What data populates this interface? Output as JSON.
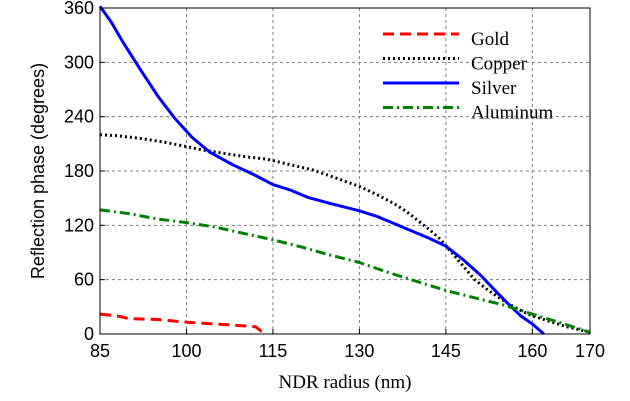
{
  "chart_data": {
    "type": "line",
    "xlabel": "NDR radius (nm)",
    "ylabel": "Reflection phase (degrees)",
    "xlim": [
      85,
      170
    ],
    "ylim": [
      0,
      360
    ],
    "xticks": [
      85,
      100,
      115,
      130,
      145,
      160,
      170
    ],
    "yticks": [
      0,
      60,
      120,
      180,
      240,
      300,
      360
    ],
    "grid": true,
    "legend_position": "top-right",
    "series": [
      {
        "name": "Gold",
        "color": "#ff0000",
        "style": "dashed",
        "points": [
          [
            85,
            22
          ],
          [
            88,
            20
          ],
          [
            90,
            17
          ],
          [
            95,
            16
          ],
          [
            100,
            13
          ],
          [
            105,
            11
          ],
          [
            110,
            9
          ],
          [
            112,
            8
          ],
          [
            113,
            3
          ],
          [
            114,
            0
          ]
        ]
      },
      {
        "name": "Copper",
        "color": "#000000",
        "style": "dotted",
        "points": [
          [
            85,
            220
          ],
          [
            88,
            219
          ],
          [
            92,
            216
          ],
          [
            96,
            212
          ],
          [
            100,
            207
          ],
          [
            103,
            203
          ],
          [
            106,
            200
          ],
          [
            110,
            196
          ],
          [
            114,
            193
          ],
          [
            118,
            187
          ],
          [
            122,
            181
          ],
          [
            126,
            172
          ],
          [
            130,
            163
          ],
          [
            133,
            154
          ],
          [
            136,
            144
          ],
          [
            138,
            136
          ],
          [
            140,
            126
          ],
          [
            142,
            116
          ],
          [
            144,
            105
          ],
          [
            146,
            90
          ],
          [
            148,
            75
          ],
          [
            150,
            60
          ],
          [
            152,
            50
          ],
          [
            154,
            41
          ],
          [
            156,
            33
          ],
          [
            158,
            26
          ],
          [
            160,
            20
          ],
          [
            163,
            14
          ],
          [
            166,
            8
          ],
          [
            168,
            5
          ],
          [
            170,
            2
          ]
        ]
      },
      {
        "name": "Silver",
        "color": "#0000ff",
        "style": "solid",
        "points": [
          [
            85,
            362
          ],
          [
            87,
            344
          ],
          [
            89,
            322
          ],
          [
            92,
            292
          ],
          [
            95,
            263
          ],
          [
            98,
            238
          ],
          [
            101,
            217
          ],
          [
            104,
            201
          ],
          [
            108,
            187
          ],
          [
            112,
            175
          ],
          [
            115,
            165
          ],
          [
            118,
            159
          ],
          [
            121,
            151
          ],
          [
            125,
            144
          ],
          [
            130,
            136
          ],
          [
            133,
            130
          ],
          [
            136,
            122
          ],
          [
            139,
            114
          ],
          [
            142,
            106
          ],
          [
            145,
            97
          ],
          [
            148,
            82
          ],
          [
            151,
            65
          ],
          [
            154,
            45
          ],
          [
            156,
            32
          ],
          [
            158,
            20
          ],
          [
            160,
            11
          ],
          [
            162,
            0
          ]
        ]
      },
      {
        "name": "Aluminum",
        "color": "#008000",
        "style": "dashdot",
        "points": [
          [
            85,
            137
          ],
          [
            90,
            133
          ],
          [
            95,
            127
          ],
          [
            100,
            123
          ],
          [
            105,
            118
          ],
          [
            110,
            111
          ],
          [
            115,
            104
          ],
          [
            120,
            96
          ],
          [
            125,
            87
          ],
          [
            130,
            79
          ],
          [
            135,
            68
          ],
          [
            140,
            58
          ],
          [
            145,
            48
          ],
          [
            150,
            40
          ],
          [
            155,
            32
          ],
          [
            160,
            22
          ],
          [
            165,
            12
          ],
          [
            170,
            2
          ]
        ]
      }
    ]
  }
}
